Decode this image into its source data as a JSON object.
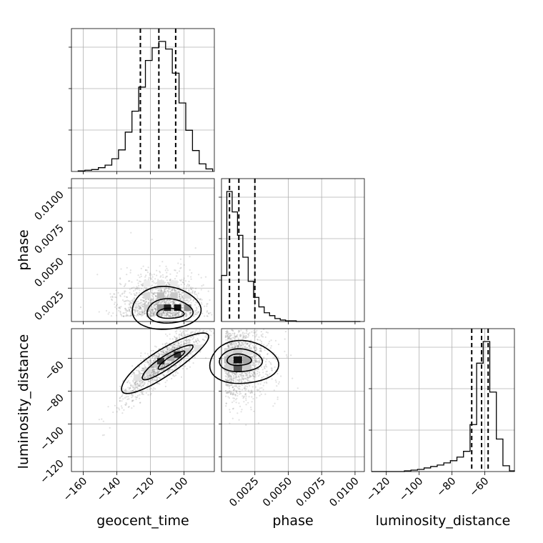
{
  "chart_data": {
    "type": "corner",
    "parameters": [
      "geocent_time",
      "phase",
      "luminosity_distance"
    ],
    "axis_labels": {
      "x": [
        "geocent_time",
        "phase",
        "luminosity_distance"
      ],
      "y": [
        "",
        "phase",
        "luminosity_distance"
      ]
    },
    "ranges": {
      "geocent_time": [
        -167,
        -82
      ],
      "phase": [
        0.0,
        0.0107
      ],
      "luminosity_distance": [
        -129,
        -42
      ]
    },
    "ticks": {
      "geocent_time": [
        -160,
        -140,
        -120,
        -100
      ],
      "phase": [
        0.0025,
        0.005,
        0.0075,
        0.01
      ],
      "luminosity_distance": [
        -120,
        -100,
        -80,
        -60
      ]
    },
    "tick_labels": {
      "geocent_time": [
        "−160",
        "−140",
        "−120",
        "−100"
      ],
      "phase": [
        "0.0025",
        "0.0050",
        "0.0075",
        "0.0100"
      ],
      "luminosity_distance": [
        "−120",
        "−100",
        "−80",
        "−60"
      ]
    },
    "quantiles": {
      "geocent_time": [
        -126,
        -115,
        -105
      ],
      "phase": [
        0.0006,
        0.0013,
        0.0025
      ],
      "luminosity_distance": [
        -68,
        -62,
        -58
      ]
    },
    "histograms": {
      "geocent_time": {
        "edges": [
          -163,
          -159,
          -155,
          -151,
          -147,
          -143,
          -139,
          -135,
          -131,
          -127,
          -123,
          -119,
          -115,
          -111,
          -107,
          -103,
          -99,
          -95,
          -91,
          -87,
          -83
        ],
        "counts": [
          1,
          2,
          3,
          6,
          10,
          20,
          34,
          62,
          95,
          133,
          175,
          195,
          205,
          193,
          155,
          108,
          65,
          33,
          12,
          4
        ]
      },
      "phase": {
        "edges": [
          0.0,
          0.0004,
          0.0008,
          0.0012,
          0.0016,
          0.002,
          0.0024,
          0.0028,
          0.0032,
          0.0036,
          0.004,
          0.0044,
          0.0048,
          0.0052,
          0.0056,
          0.006,
          0.0064,
          0.0068,
          0.0072,
          0.0076,
          0.008,
          0.0084,
          0.0088,
          0.0092,
          0.0096,
          0.01,
          0.0104
        ],
        "counts": [
          63,
          178,
          150,
          118,
          88,
          55,
          33,
          20,
          12,
          8,
          4,
          2,
          1,
          1,
          0,
          0,
          0,
          0,
          0,
          0,
          0,
          0,
          0,
          0,
          0,
          0
        ]
      },
      "luminosity_distance": {
        "edges": [
          -129,
          -125,
          -121,
          -117,
          -113,
          -109,
          -105,
          -101,
          -97,
          -93,
          -89,
          -85,
          -81,
          -77,
          -73,
          -69,
          -65,
          -61,
          -57,
          -53,
          -49,
          -45,
          -42
        ],
        "counts": [
          0,
          0,
          0,
          0,
          0,
          1,
          2,
          3,
          5,
          7,
          9,
          12,
          15,
          20,
          28,
          65,
          150,
          180,
          110,
          45,
          8,
          1
        ]
      }
    },
    "joint": [
      {
        "x": "geocent_time",
        "y": "phase",
        "center": [
          -113,
          0.0012
        ],
        "spread": [
          12,
          0.0015
        ],
        "peak_cells": [
          [
            -112,
            0.0011
          ],
          [
            -106,
            0.0011
          ]
        ]
      },
      {
        "x": "geocent_time",
        "y": "luminosity_distance",
        "center": [
          -112,
          -62
        ],
        "correlation": "strong positive",
        "peak_cells": [
          [
            -117,
            -62
          ],
          [
            -108,
            -58
          ]
        ]
      },
      {
        "x": "phase",
        "y": "luminosity_distance",
        "center": [
          0.001,
          -62
        ],
        "spread": [
          0.0015,
          14
        ],
        "peak_cells": [
          [
            0.0012,
            -62
          ]
        ]
      }
    ],
    "grid": true
  }
}
